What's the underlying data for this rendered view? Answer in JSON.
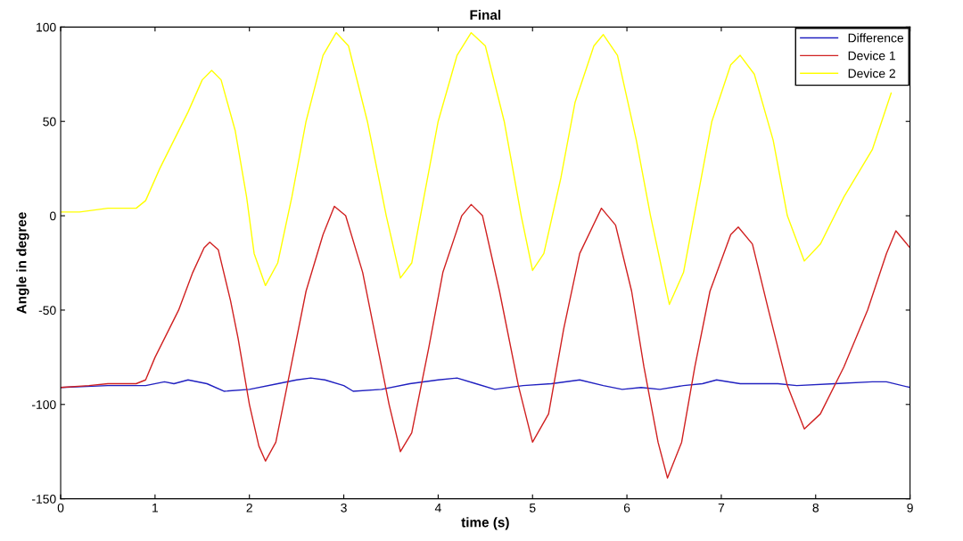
{
  "chart_data": {
    "type": "line",
    "title": "Final",
    "xlabel": "time (s)",
    "ylabel": "Angle in degree",
    "xlim": [
      0,
      9
    ],
    "ylim": [
      -150,
      100
    ],
    "xticks": [
      0,
      1,
      2,
      3,
      4,
      5,
      6,
      7,
      8,
      9
    ],
    "yticks": [
      -150,
      -100,
      -50,
      0,
      50,
      100
    ],
    "grid": false,
    "legend": "top right",
    "line_style": "solid",
    "marker": "none",
    "series": [
      {
        "name": "Difference",
        "color": "#2020c0",
        "x": [
          0,
          0.5,
          0.9,
          1.1,
          1.2,
          1.35,
          1.55,
          1.73,
          2.0,
          2.3,
          2.5,
          2.65,
          2.8,
          3.0,
          3.1,
          3.4,
          3.7,
          4.0,
          4.2,
          4.4,
          4.6,
          4.9,
          5.2,
          5.5,
          5.75,
          5.95,
          6.15,
          6.35,
          6.6,
          6.8,
          6.95,
          7.2,
          7.6,
          7.8,
          8.2,
          8.6,
          8.75,
          9.0
        ],
        "values": [
          -91,
          -90,
          -90,
          -88,
          -89,
          -87,
          -89,
          -93,
          -92,
          -89,
          -87,
          -86,
          -87,
          -90,
          -93,
          -92,
          -89,
          -87,
          -86,
          -89,
          -92,
          -90,
          -89,
          -87,
          -90,
          -92,
          -91,
          -92,
          -90,
          -89,
          -87,
          -89,
          -89,
          -90,
          -89,
          -88,
          -88,
          -91
        ]
      },
      {
        "name": "Device 1",
        "color": "#d02020",
        "x": [
          0,
          0.3,
          0.5,
          0.8,
          0.9,
          1.0,
          1.15,
          1.25,
          1.4,
          1.52,
          1.58,
          1.67,
          1.8,
          1.88,
          2.0,
          2.1,
          2.17,
          2.28,
          2.42,
          2.6,
          2.78,
          2.9,
          3.02,
          3.2,
          3.3,
          3.48,
          3.6,
          3.72,
          3.9,
          4.05,
          4.25,
          4.35,
          4.47,
          4.65,
          4.85,
          5.0,
          5.17,
          5.33,
          5.5,
          5.73,
          5.88,
          6.05,
          6.18,
          6.33,
          6.43,
          6.58,
          6.72,
          6.88,
          7.1,
          7.18,
          7.33,
          7.5,
          7.7,
          7.88,
          8.05,
          8.3,
          8.55,
          8.75,
          8.85,
          9.0
        ],
        "values": [
          -91,
          -90,
          -89,
          -89,
          -87,
          -75,
          -60,
          -50,
          -30,
          -17,
          -14,
          -18,
          -45,
          -65,
          -100,
          -122,
          -130,
          -120,
          -85,
          -40,
          -10,
          5,
          0,
          -30,
          -55,
          -100,
          -125,
          -115,
          -70,
          -30,
          0,
          6,
          0,
          -40,
          -90,
          -120,
          -105,
          -60,
          -20,
          4,
          -5,
          -40,
          -80,
          -120,
          -139,
          -120,
          -80,
          -40,
          -10,
          -6,
          -15,
          -50,
          -90,
          -113,
          -105,
          -80,
          -50,
          -20,
          -8,
          -17
        ]
      },
      {
        "name": "Device 2",
        "color": "#ffff00",
        "x": [
          0,
          0.2,
          0.5,
          0.8,
          0.9,
          1.05,
          1.2,
          1.35,
          1.5,
          1.6,
          1.7,
          1.85,
          1.97,
          2.05,
          2.17,
          2.3,
          2.45,
          2.6,
          2.78,
          2.92,
          3.05,
          3.25,
          3.45,
          3.6,
          3.72,
          3.85,
          4.0,
          4.2,
          4.35,
          4.5,
          4.7,
          4.88,
          5.0,
          5.12,
          5.3,
          5.45,
          5.65,
          5.75,
          5.9,
          6.1,
          6.25,
          6.45,
          6.6,
          6.75,
          6.9,
          7.1,
          7.2,
          7.35,
          7.55,
          7.7,
          7.88,
          8.05,
          8.3,
          8.6,
          8.8
        ],
        "values": [
          2,
          2,
          4,
          4,
          8,
          25,
          40,
          55,
          72,
          77,
          72,
          45,
          10,
          -20,
          -37,
          -25,
          10,
          50,
          85,
          97,
          90,
          50,
          0,
          -33,
          -25,
          10,
          50,
          85,
          97,
          90,
          50,
          0,
          -29,
          -20,
          20,
          60,
          90,
          96,
          85,
          40,
          0,
          -47,
          -30,
          10,
          50,
          80,
          85,
          75,
          40,
          0,
          -24,
          -15,
          10,
          35,
          65
        ]
      }
    ]
  }
}
